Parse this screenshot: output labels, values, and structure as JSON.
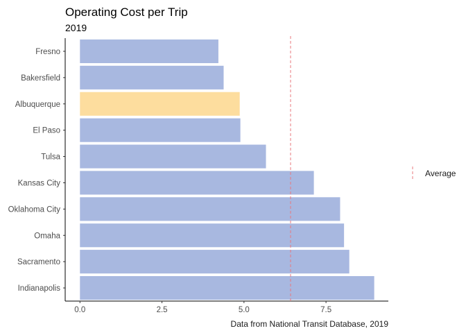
{
  "chart_data": {
    "type": "bar",
    "orientation": "horizontal",
    "title": "Operating Cost per Trip",
    "subtitle": "2019",
    "caption": "Data from National Transit Database, 2019",
    "categories": [
      "Fresno",
      "Bakersfield",
      "Albuquerque",
      "El Paso",
      "Tulsa",
      "Kansas City",
      "Oklahoma City",
      "Omaha",
      "Sacramento",
      "Indianapolis"
    ],
    "values": [
      4.22,
      4.38,
      4.87,
      4.89,
      5.67,
      7.13,
      7.93,
      8.05,
      8.21,
      8.97
    ],
    "highlight": "Albuquerque",
    "average": 6.42,
    "xlim": [
      -0.45,
      9.4
    ],
    "xticks": [
      0,
      2.5,
      5.0,
      7.5
    ],
    "xtick_labels": [
      "0.0",
      "2.5",
      "5.0",
      "7.5"
    ],
    "grid": false,
    "legend": {
      "position": "right",
      "entries": [
        {
          "label": "Average",
          "style": "dashed"
        }
      ]
    },
    "colors": {
      "bar": "#a8b8e0",
      "highlight": "#fddd9e",
      "average_line": "#e8787e",
      "axis": "#000000"
    }
  }
}
